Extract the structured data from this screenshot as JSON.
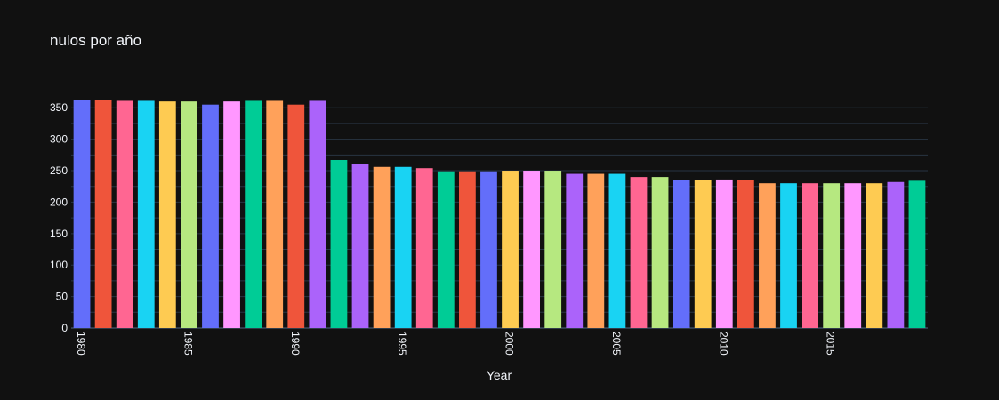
{
  "chart_data": {
    "type": "bar",
    "title": "nulos por año",
    "xlabel": "Year",
    "ylabel": "",
    "ylim": [
      0,
      380
    ],
    "yticks": [
      0,
      50,
      100,
      150,
      200,
      250,
      300,
      350
    ],
    "xticks": [
      1980,
      1985,
      1990,
      1995,
      2000,
      2005,
      2010,
      2015
    ],
    "x": [
      1980,
      1981,
      1982,
      1983,
      1984,
      1985,
      1986,
      1987,
      1988,
      1989,
      1990,
      1991,
      1992,
      1993,
      1994,
      1995,
      1996,
      1997,
      1998,
      1999,
      2000,
      2001,
      2002,
      2003,
      2004,
      2005,
      2006,
      2007,
      2008,
      2009,
      2010,
      2011,
      2012,
      2013,
      2014,
      2015,
      2016,
      2017,
      2018,
      2019
    ],
    "values": [
      363,
      362,
      361,
      361,
      360,
      360,
      355,
      360,
      361,
      361,
      355,
      361,
      267,
      261,
      256,
      256,
      254,
      249,
      249,
      249,
      250,
      250,
      250,
      245,
      245,
      245,
      240,
      240,
      235,
      235,
      236,
      235,
      230,
      230,
      230,
      230,
      230,
      230,
      232,
      234
    ],
    "palette": [
      "#636efa",
      "#ef553b",
      "#ff6692",
      "#19d3f3",
      "#fecb52",
      "#b6e880",
      "#636efa",
      "#ff97ff",
      "#00cc96",
      "#ffa15a",
      "#ef553b",
      "#ab63fa",
      "#00cc96",
      "#ab63fa",
      "#ffa15a",
      "#19d3f3",
      "#ff6692",
      "#00cc96",
      "#ef553b",
      "#636efa",
      "#fecb52",
      "#ff97ff",
      "#b6e880",
      "#ab63fa",
      "#ffa15a",
      "#19d3f3",
      "#ff6692",
      "#b6e880",
      "#636efa",
      "#fecb52",
      "#ff97ff",
      "#ef553b",
      "#ffa15a",
      "#19d3f3",
      "#ff6692",
      "#b6e880",
      "#ff97ff",
      "#fecb52",
      "#ab63fa",
      "#00cc96"
    ],
    "grid": true,
    "legend": "none"
  }
}
